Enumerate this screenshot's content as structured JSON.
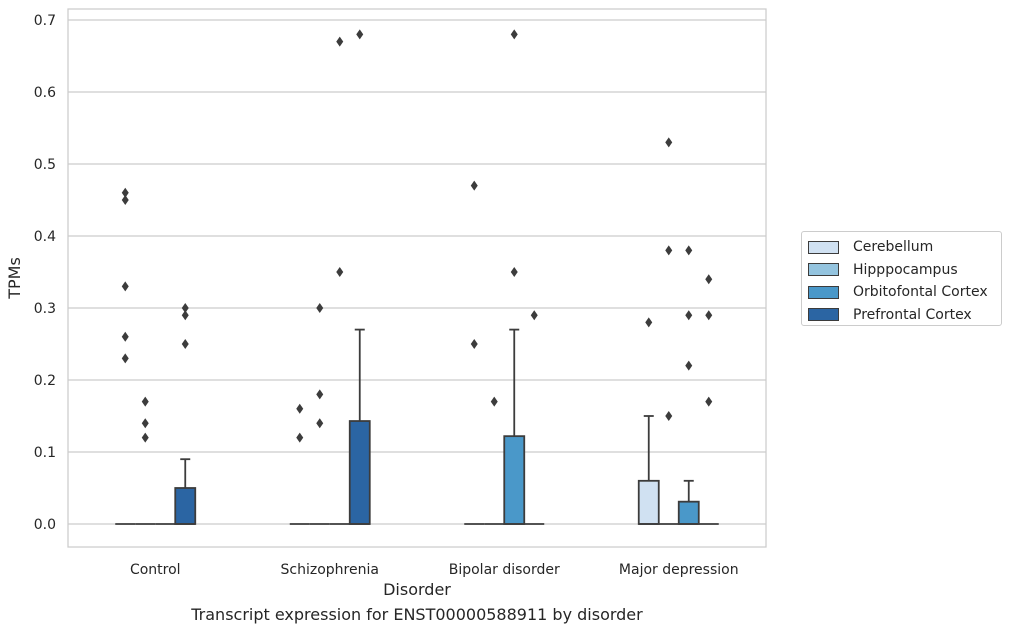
{
  "chart_data": {
    "type": "boxplot",
    "xlabel": "Disorder",
    "ylabel": "TPMs",
    "caption": "Transcript expression for ENST00000588911 by disorder",
    "ylim": [
      -0.033,
      0.715
    ],
    "yticks": [
      0.0,
      0.1,
      0.2,
      0.3,
      0.4,
      0.5,
      0.6,
      0.7
    ],
    "ytick_labels": [
      "0.0",
      "0.1",
      "0.2",
      "0.3",
      "0.4",
      "0.5",
      "0.6",
      "0.7"
    ],
    "grid": "horizontal",
    "legend_position": "right",
    "categories": [
      "Control",
      "Schizophrenia",
      "Bipolar disorder",
      "Major depression"
    ],
    "series": [
      {
        "name": "Cerebellum",
        "color": "#d0e1f2"
      },
      {
        "name": "Hipppocampus",
        "color": "#94c4df"
      },
      {
        "name": "Orbitofontal Cortex",
        "color": "#4a98c9"
      },
      {
        "name": "Prefrontal Cortex",
        "color": "#2b65a3"
      }
    ],
    "boxes": [
      [
        {
          "q1": 0,
          "median": 0,
          "q3": 0,
          "whisker_low": 0,
          "whisker_high": 0,
          "outliers": [
            0.23,
            0.26,
            0.33,
            0.45,
            0.46
          ]
        },
        {
          "q1": 0,
          "median": 0,
          "q3": 0,
          "whisker_low": 0,
          "whisker_high": 0,
          "outliers": [
            0.12,
            0.14,
            0.17
          ]
        },
        {
          "q1": 0,
          "median": 0,
          "q3": 0,
          "whisker_low": 0,
          "whisker_high": 0,
          "outliers": []
        },
        {
          "q1": 0,
          "median": 0,
          "q3": 0.05,
          "whisker_low": 0,
          "whisker_high": 0.09,
          "outliers": [
            0.25,
            0.29,
            0.3
          ]
        }
      ],
      [
        {
          "q1": 0,
          "median": 0,
          "q3": 0,
          "whisker_low": 0,
          "whisker_high": 0,
          "outliers": [
            0.12,
            0.16
          ]
        },
        {
          "q1": 0,
          "median": 0,
          "q3": 0,
          "whisker_low": 0,
          "whisker_high": 0,
          "outliers": [
            0.14,
            0.18,
            0.3
          ]
        },
        {
          "q1": 0,
          "median": 0,
          "q3": 0,
          "whisker_low": 0,
          "whisker_high": 0,
          "outliers": [
            0.35,
            0.67
          ]
        },
        {
          "q1": 0,
          "median": 0,
          "q3": 0.143,
          "whisker_low": 0,
          "whisker_high": 0.27,
          "outliers": [
            0.68
          ]
        }
      ],
      [
        {
          "q1": 0,
          "median": 0,
          "q3": 0,
          "whisker_low": 0,
          "whisker_high": 0,
          "outliers": [
            0.25,
            0.47
          ]
        },
        {
          "q1": 0,
          "median": 0,
          "q3": 0,
          "whisker_low": 0,
          "whisker_high": 0,
          "outliers": [
            0.17
          ]
        },
        {
          "q1": 0,
          "median": 0,
          "q3": 0.122,
          "whisker_low": 0,
          "whisker_high": 0.27,
          "outliers": [
            0.35,
            0.68
          ]
        },
        {
          "q1": 0,
          "median": 0,
          "q3": 0,
          "whisker_low": 0,
          "whisker_high": 0,
          "outliers": [
            0.29
          ]
        }
      ],
      [
        {
          "q1": 0,
          "median": 0,
          "q3": 0.06,
          "whisker_low": 0,
          "whisker_high": 0.15,
          "outliers": [
            0.28
          ]
        },
        {
          "q1": 0,
          "median": 0,
          "q3": 0,
          "whisker_low": 0,
          "whisker_high": 0,
          "outliers": [
            0.15,
            0.38,
            0.53
          ]
        },
        {
          "q1": 0,
          "median": 0,
          "q3": 0.031,
          "whisker_low": 0,
          "whisker_high": 0.06,
          "outliers": [
            0.22,
            0.29,
            0.38
          ]
        },
        {
          "q1": 0,
          "median": 0,
          "q3": 0,
          "whisker_low": 0,
          "whisker_high": 0,
          "outliers": [
            0.17,
            0.29,
            0.34
          ]
        }
      ]
    ]
  }
}
